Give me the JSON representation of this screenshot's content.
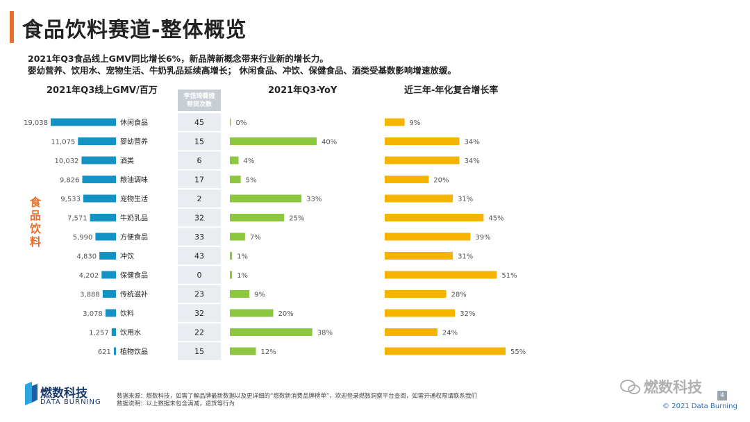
{
  "title": "食品饮料赛道-整体概览",
  "summary": {
    "line1": "2021年Q3食品线上GMV同比增长6%，新品牌新概念带来行业新的增长力。",
    "line2": "婴幼营养、饮用水、宠物生活、牛奶乳品延续高增长；  休闲食品、冲饮、保健食品、酒类受基数影响增速放缓。"
  },
  "columns": {
    "gmv": "2021年Q3线上GMV/百万",
    "live_line1": "李佳琦薇娅",
    "live_line2": "带货次数",
    "yoy": "2021年Q3-YoY",
    "cagr": "近三年-年化复合增长率"
  },
  "side_label": [
    "食",
    "品",
    "饮",
    "料"
  ],
  "colors": {
    "gmv": "#1592c4",
    "yoy": "#8dc63f",
    "cagr": "#f5b400",
    "accent": "#e8702a",
    "live_bg": "#e9ecf0",
    "live_head": "#c7ced6"
  },
  "chart_data": {
    "type": "bar",
    "title": "食品饮料赛道-整体概览",
    "categories": [
      "休闲食品",
      "婴幼营养",
      "酒类",
      "粮油调味",
      "宠物生活",
      "牛奶乳品",
      "方便食品",
      "冲饮",
      "保健食品",
      "传统滋补",
      "饮料",
      "饮用水",
      "植物饮品"
    ],
    "series": [
      {
        "name": "2021年Q3线上GMV/百万",
        "values": [
          19038,
          11075,
          10032,
          9826,
          9533,
          7571,
          5990,
          4830,
          4202,
          3888,
          3078,
          1257,
          621
        ],
        "labels": [
          "19,038",
          "11,075",
          "10,032",
          "9,826",
          "9,533",
          "7,571",
          "5,990",
          "4,830",
          "4,202",
          "3,888",
          "3,078",
          "1,257",
          "621"
        ]
      },
      {
        "name": "李佳琦薇娅带货次数",
        "values": [
          45,
          15,
          6,
          17,
          2,
          32,
          33,
          43,
          0,
          23,
          32,
          22,
          15
        ]
      },
      {
        "name": "2021年Q3-YoY",
        "values": [
          0,
          40,
          4,
          5,
          33,
          25,
          7,
          1,
          1,
          9,
          20,
          38,
          12
        ],
        "labels": [
          "0%",
          "40%",
          "4%",
          "5%",
          "33%",
          "25%",
          "7%",
          "1%",
          "1%",
          "9%",
          "20%",
          "38%",
          "12%"
        ]
      },
      {
        "name": "近三年-年化复合增长率",
        "values": [
          9,
          34,
          34,
          20,
          31,
          45,
          39,
          31,
          51,
          28,
          32,
          24,
          55
        ],
        "labels": [
          "9%",
          "34%",
          "34%",
          "20%",
          "31%",
          "45%",
          "39%",
          "31%",
          "51%",
          "28%",
          "32%",
          "24%",
          "55%"
        ]
      }
    ]
  },
  "footer": {
    "logo_name": "燃数科技",
    "logo_sub": "DATA BURNING",
    "source": "数据来源：燃数科技，如需了解品牌最新数据以及更详细的“燃数新消费品牌榜单”，欢迎登录燃数洞察平台查阅，如需开通权限请联系我们",
    "note": "数据说明：以上数据未包含满减，退货等行为",
    "wechat": "燃数科技",
    "copyright": "© 2021 Data Burning",
    "page": "4"
  }
}
